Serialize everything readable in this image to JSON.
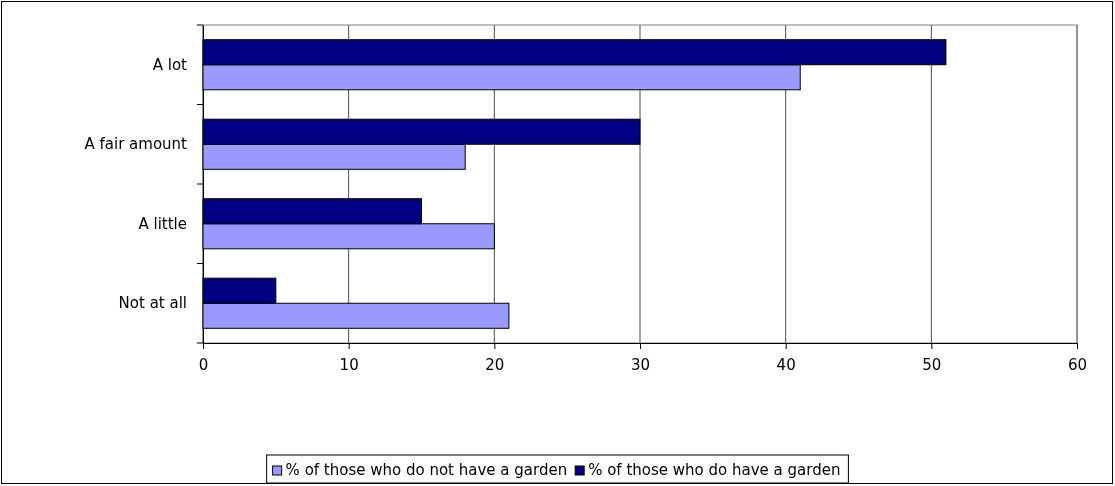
{
  "chart_data": {
    "type": "bar",
    "orientation": "horizontal",
    "categories": [
      "A lot",
      "A fair amount",
      "A little",
      "Not at all"
    ],
    "series": [
      {
        "name": "% of those who do not have a garden",
        "color": "#9999ff",
        "values": [
          41,
          18,
          20,
          21
        ]
      },
      {
        "name": "% of those who do have a garden",
        "color": "#000080",
        "values": [
          51,
          30,
          15,
          5
        ]
      }
    ],
    "xlim": [
      0,
      60
    ],
    "xticks": [
      0,
      10,
      20,
      30,
      40,
      50,
      60
    ],
    "grid": "x",
    "legend": "bottom"
  }
}
